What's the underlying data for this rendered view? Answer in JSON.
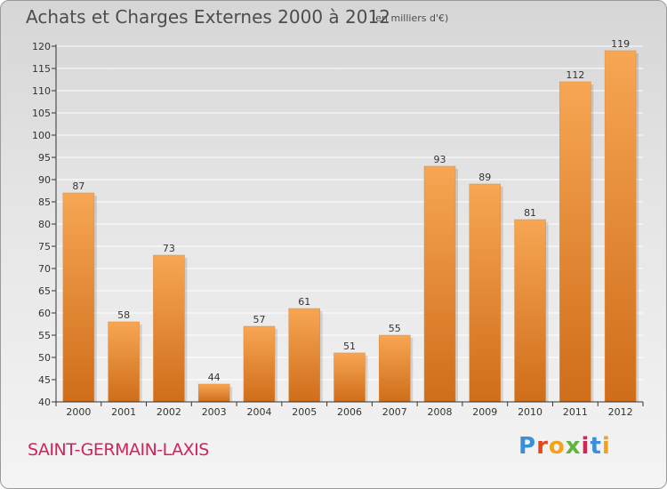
{
  "header": {
    "title": "Achats et Charges Externes 2000 à 2012",
    "unit": "(en milliers d'€)"
  },
  "footer": {
    "town": "SAINT-GERMAIN-LAXIS",
    "brand": "Proxiti",
    "brand_colors": [
      "#3a8fd9",
      "#e7441c",
      "#f3a21b",
      "#5fb63c",
      "#d1245a",
      "#3a8fd9",
      "#f3a21b"
    ]
  },
  "colors": {
    "bar_top": "#f7a653",
    "bar_bottom": "#cf6d1a",
    "axis": "#333333",
    "grid": "#ffffff",
    "text": "#333333"
  },
  "chart_data": {
    "type": "bar",
    "categories": [
      "2000",
      "2001",
      "2002",
      "2003",
      "2004",
      "2005",
      "2006",
      "2007",
      "2008",
      "2009",
      "2010",
      "2011",
      "2012"
    ],
    "values": [
      87,
      58,
      73,
      44,
      57,
      61,
      51,
      55,
      93,
      89,
      81,
      112,
      119
    ],
    "ylim": [
      40,
      120
    ],
    "yticks": [
      40,
      45,
      50,
      55,
      60,
      65,
      70,
      75,
      80,
      85,
      90,
      95,
      100,
      105,
      110,
      115,
      120
    ],
    "grid": true,
    "data_labels": true
  }
}
